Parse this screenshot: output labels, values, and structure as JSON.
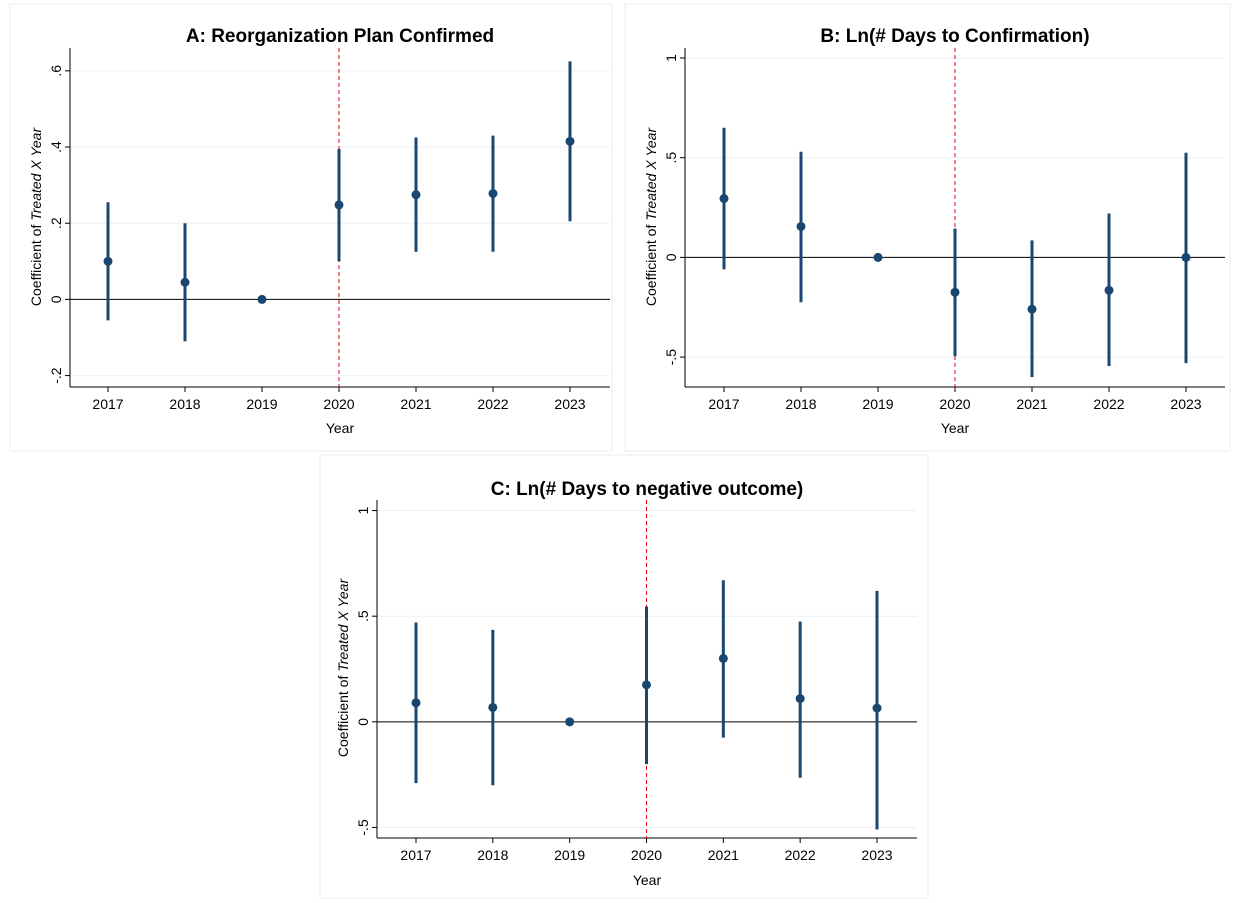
{
  "colors": {
    "marker": "#1a476f",
    "zero_line": "#000000",
    "event_line": "#e8000b",
    "grid": "#eaf0f4",
    "axis": "#000000",
    "panel_border": "#e8e8e8"
  },
  "chart_data": [
    {
      "type": "scatter",
      "title": "A: Reorganization Plan Confirmed",
      "xlabel": "Year",
      "ylabel_prefix": "Coefficient of ",
      "ylabel_italic": "Treated X Year",
      "x": [
        "2017",
        "2018",
        "2019",
        "2020",
        "2021",
        "2022",
        "2023"
      ],
      "coef": [
        0.1,
        0.045,
        0.0,
        0.248,
        0.275,
        0.278,
        0.415
      ],
      "ci_low": [
        -0.055,
        -0.11,
        0.0,
        0.1,
        0.125,
        0.125,
        0.205
      ],
      "ci_high": [
        0.255,
        0.2,
        0.0,
        0.395,
        0.425,
        0.43,
        0.625
      ],
      "yticks": [
        -0.2,
        0,
        0.2,
        0.4,
        0.6
      ],
      "ytick_labels": [
        "-.2",
        "0",
        ".2",
        ".4",
        ".6"
      ],
      "ylim": [
        -0.23,
        0.66
      ],
      "event_x": "2020",
      "grid": true
    },
    {
      "type": "scatter",
      "title": "B: Ln(# Days to Confirmation)",
      "xlabel": "Year",
      "ylabel_prefix": "Coefficient of ",
      "ylabel_italic": "Treated X Year",
      "x": [
        "2017",
        "2018",
        "2019",
        "2020",
        "2021",
        "2022",
        "2023"
      ],
      "coef": [
        0.295,
        0.155,
        0.0,
        -0.175,
        -0.26,
        -0.165,
        0.0
      ],
      "ci_low": [
        -0.06,
        -0.225,
        0.0,
        -0.495,
        -0.6,
        -0.545,
        -0.53
      ],
      "ci_high": [
        0.65,
        0.53,
        0.0,
        0.145,
        0.085,
        0.22,
        0.525
      ],
      "yticks": [
        -0.5,
        0,
        0.5,
        1
      ],
      "ytick_labels": [
        "-.5",
        "0",
        ".5",
        "1"
      ],
      "ylim": [
        -0.65,
        1.05
      ],
      "event_x": "2020",
      "grid": true
    },
    {
      "type": "scatter",
      "title": "C: Ln(# Days to negative outcome)",
      "xlabel": "Year",
      "ylabel_prefix": "Coefficient of ",
      "ylabel_italic": "Treated X Year",
      "x": [
        "2017",
        "2018",
        "2019",
        "2020",
        "2021",
        "2022",
        "2023"
      ],
      "coef": [
        0.09,
        0.068,
        0.0,
        0.175,
        0.3,
        0.11,
        0.065
      ],
      "ci_low": [
        -0.29,
        -0.3,
        0.0,
        -0.2,
        -0.075,
        -0.265,
        -0.51
      ],
      "ci_high": [
        0.47,
        0.435,
        0.0,
        0.545,
        0.67,
        0.475,
        0.62
      ],
      "yticks": [
        -0.5,
        0,
        0.5,
        1
      ],
      "ytick_labels": [
        "-.5",
        "0",
        ".5",
        "1"
      ],
      "ylim": [
        -0.55,
        1.05
      ],
      "event_x": "2020",
      "grid": true
    }
  ]
}
